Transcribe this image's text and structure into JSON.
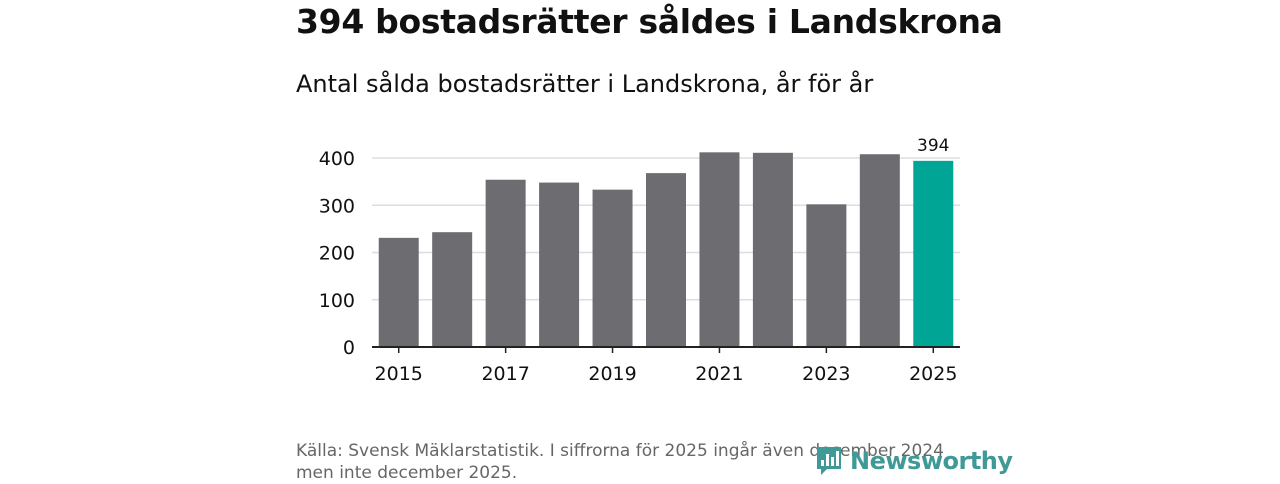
{
  "headline": "394 bostadsrätter såldes i Landskrona",
  "subtitle": "Antal sålda bostadsrätter i Landskrona, år för år",
  "source_note": "Källa: Svensk Mäklarstatistik. I siffrorna för 2025 ingår även december 2024 men inte december 2025.",
  "brand": {
    "name": "Newsworthy",
    "icon": "newsworthy-logo-icon"
  },
  "colors": {
    "bar": "#6d6c71",
    "highlight": "#00a596",
    "grid": "#dddddd",
    "axis": "#222222",
    "text": "#111111"
  },
  "chart_data": {
    "type": "bar",
    "title": "Antal sålda bostadsrätter i Landskrona, år för år",
    "xlabel": "",
    "ylabel": "",
    "categories": [
      "2015",
      "2016",
      "2017",
      "2018",
      "2019",
      "2020",
      "2021",
      "2022",
      "2023",
      "2024",
      "2025"
    ],
    "values": [
      231,
      243,
      354,
      348,
      333,
      368,
      412,
      411,
      302,
      408,
      394
    ],
    "highlight_category": "2025",
    "data_labels": [
      {
        "category": "2025",
        "text": "394"
      }
    ],
    "x_tick_labels": [
      "2015",
      "2017",
      "2019",
      "2021",
      "2023",
      "2025"
    ],
    "y_ticks": [
      0,
      100,
      200,
      300,
      400
    ],
    "ylim": [
      0,
      420
    ],
    "grid": true,
    "legend": "none"
  }
}
